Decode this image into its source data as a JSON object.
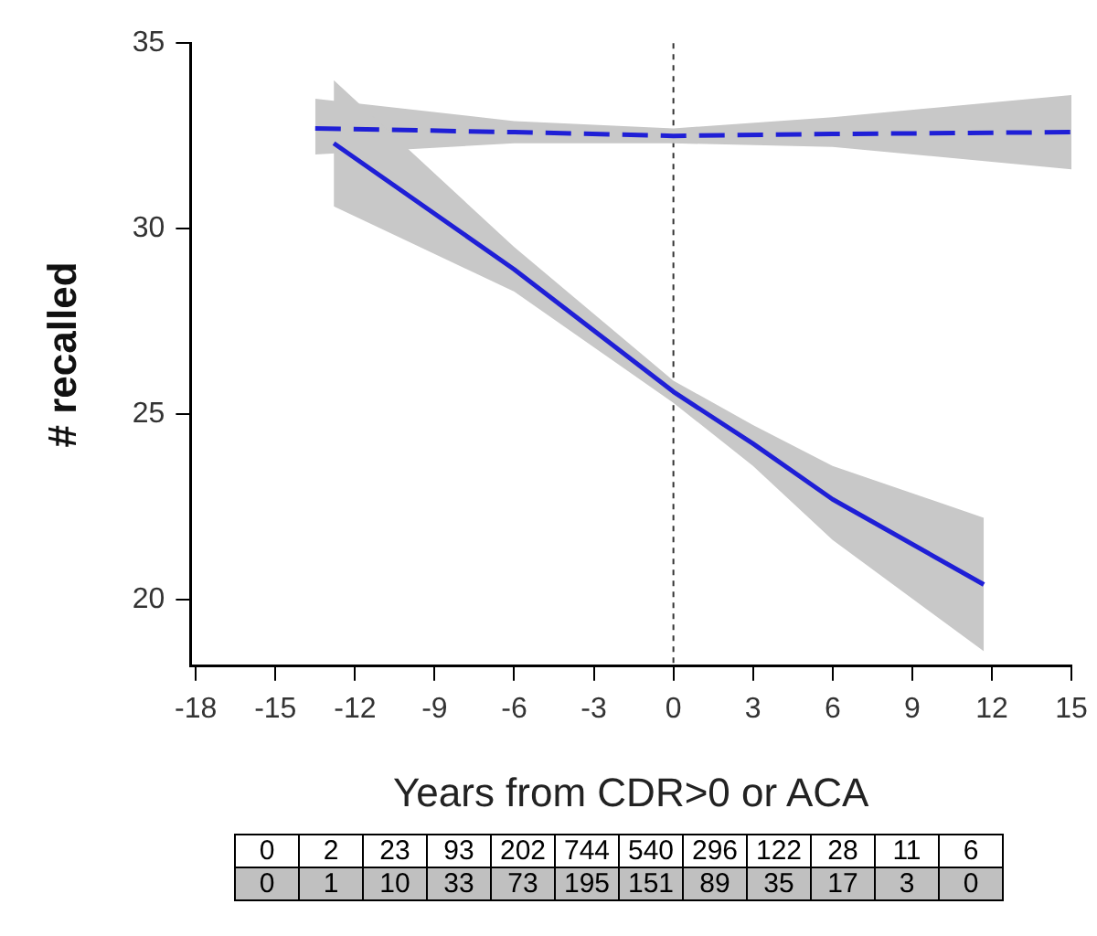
{
  "chart_data": {
    "type": "line",
    "xlabel": "Years from CDR>0 or ACA",
    "ylabel": "# recalled",
    "xlim": [
      -18.2,
      15
    ],
    "xticks": [
      -18,
      -15,
      -12,
      -9,
      -6,
      -3,
      0,
      3,
      6,
      9,
      12,
      15
    ],
    "ylim": [
      18.2,
      35
    ],
    "yticks": [
      20,
      25,
      30,
      35
    ],
    "grid": false,
    "legend": false,
    "marker": "none",
    "series": [
      {
        "color": "#1f1fd6",
        "line_style": "solid",
        "x": [
          -12.8,
          -6,
          0,
          3,
          6,
          11.7
        ],
        "values": [
          32.3,
          28.9,
          25.6,
          24.2,
          22.7,
          20.4
        ],
        "lower": [
          30.6,
          28.3,
          25.3,
          23.6,
          21.6,
          18.6
        ],
        "upper": [
          34.0,
          29.5,
          25.9,
          24.7,
          23.6,
          22.2
        ]
      },
      {
        "color": "#1f1fd6",
        "line_style": "dashed",
        "x": [
          -13.5,
          -6,
          0,
          6,
          15
        ],
        "values": [
          32.7,
          32.6,
          32.5,
          32.55,
          32.6
        ],
        "lower": [
          32.0,
          32.3,
          32.3,
          32.2,
          31.6
        ],
        "upper": [
          33.5,
          32.9,
          32.7,
          33.0,
          33.6
        ]
      }
    ],
    "ref_lines": [
      {
        "axis": "x",
        "value": 0,
        "line_style": "dotted",
        "color": "#333333"
      }
    ],
    "annotations": [
      "0",
      "2",
      "23",
      "93",
      "202",
      "744",
      "540",
      "296",
      "122",
      "28",
      "11",
      "6",
      "0",
      "1",
      "10",
      "33",
      "73",
      "195",
      "151",
      "89",
      "35",
      "17",
      "3",
      "0"
    ]
  }
}
